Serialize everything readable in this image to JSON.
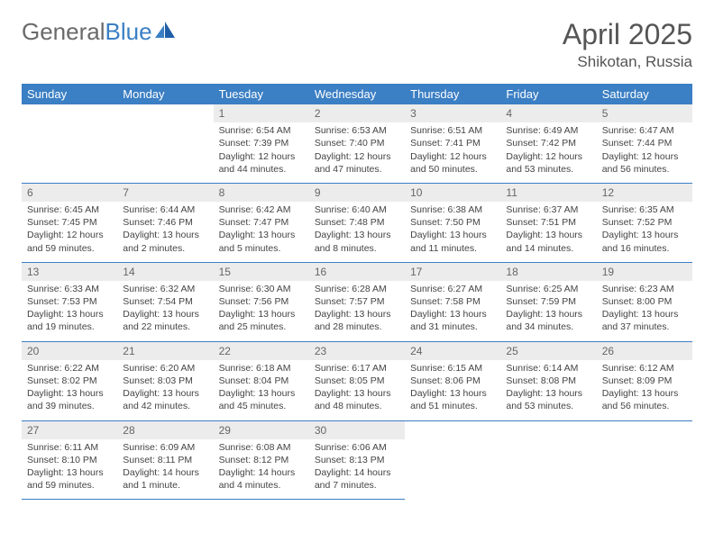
{
  "logo": {
    "text1": "General",
    "text2": "Blue"
  },
  "title": "April 2025",
  "location": "Shikotan, Russia",
  "colors": {
    "header_bg": "#3b7fc4",
    "header_text": "#ffffff",
    "daynum_bg": "#ececec",
    "border": "#3b7fc4",
    "body_text": "#444444",
    "title_text": "#555555"
  },
  "weekdays": [
    "Sunday",
    "Monday",
    "Tuesday",
    "Wednesday",
    "Thursday",
    "Friday",
    "Saturday"
  ],
  "weeks": [
    [
      null,
      null,
      {
        "n": "1",
        "sr": "Sunrise: 6:54 AM",
        "ss": "Sunset: 7:39 PM",
        "dl": "Daylight: 12 hours and 44 minutes."
      },
      {
        "n": "2",
        "sr": "Sunrise: 6:53 AM",
        "ss": "Sunset: 7:40 PM",
        "dl": "Daylight: 12 hours and 47 minutes."
      },
      {
        "n": "3",
        "sr": "Sunrise: 6:51 AM",
        "ss": "Sunset: 7:41 PM",
        "dl": "Daylight: 12 hours and 50 minutes."
      },
      {
        "n": "4",
        "sr": "Sunrise: 6:49 AM",
        "ss": "Sunset: 7:42 PM",
        "dl": "Daylight: 12 hours and 53 minutes."
      },
      {
        "n": "5",
        "sr": "Sunrise: 6:47 AM",
        "ss": "Sunset: 7:44 PM",
        "dl": "Daylight: 12 hours and 56 minutes."
      }
    ],
    [
      {
        "n": "6",
        "sr": "Sunrise: 6:45 AM",
        "ss": "Sunset: 7:45 PM",
        "dl": "Daylight: 12 hours and 59 minutes."
      },
      {
        "n": "7",
        "sr": "Sunrise: 6:44 AM",
        "ss": "Sunset: 7:46 PM",
        "dl": "Daylight: 13 hours and 2 minutes."
      },
      {
        "n": "8",
        "sr": "Sunrise: 6:42 AM",
        "ss": "Sunset: 7:47 PM",
        "dl": "Daylight: 13 hours and 5 minutes."
      },
      {
        "n": "9",
        "sr": "Sunrise: 6:40 AM",
        "ss": "Sunset: 7:48 PM",
        "dl": "Daylight: 13 hours and 8 minutes."
      },
      {
        "n": "10",
        "sr": "Sunrise: 6:38 AM",
        "ss": "Sunset: 7:50 PM",
        "dl": "Daylight: 13 hours and 11 minutes."
      },
      {
        "n": "11",
        "sr": "Sunrise: 6:37 AM",
        "ss": "Sunset: 7:51 PM",
        "dl": "Daylight: 13 hours and 14 minutes."
      },
      {
        "n": "12",
        "sr": "Sunrise: 6:35 AM",
        "ss": "Sunset: 7:52 PM",
        "dl": "Daylight: 13 hours and 16 minutes."
      }
    ],
    [
      {
        "n": "13",
        "sr": "Sunrise: 6:33 AM",
        "ss": "Sunset: 7:53 PM",
        "dl": "Daylight: 13 hours and 19 minutes."
      },
      {
        "n": "14",
        "sr": "Sunrise: 6:32 AM",
        "ss": "Sunset: 7:54 PM",
        "dl": "Daylight: 13 hours and 22 minutes."
      },
      {
        "n": "15",
        "sr": "Sunrise: 6:30 AM",
        "ss": "Sunset: 7:56 PM",
        "dl": "Daylight: 13 hours and 25 minutes."
      },
      {
        "n": "16",
        "sr": "Sunrise: 6:28 AM",
        "ss": "Sunset: 7:57 PM",
        "dl": "Daylight: 13 hours and 28 minutes."
      },
      {
        "n": "17",
        "sr": "Sunrise: 6:27 AM",
        "ss": "Sunset: 7:58 PM",
        "dl": "Daylight: 13 hours and 31 minutes."
      },
      {
        "n": "18",
        "sr": "Sunrise: 6:25 AM",
        "ss": "Sunset: 7:59 PM",
        "dl": "Daylight: 13 hours and 34 minutes."
      },
      {
        "n": "19",
        "sr": "Sunrise: 6:23 AM",
        "ss": "Sunset: 8:00 PM",
        "dl": "Daylight: 13 hours and 37 minutes."
      }
    ],
    [
      {
        "n": "20",
        "sr": "Sunrise: 6:22 AM",
        "ss": "Sunset: 8:02 PM",
        "dl": "Daylight: 13 hours and 39 minutes."
      },
      {
        "n": "21",
        "sr": "Sunrise: 6:20 AM",
        "ss": "Sunset: 8:03 PM",
        "dl": "Daylight: 13 hours and 42 minutes."
      },
      {
        "n": "22",
        "sr": "Sunrise: 6:18 AM",
        "ss": "Sunset: 8:04 PM",
        "dl": "Daylight: 13 hours and 45 minutes."
      },
      {
        "n": "23",
        "sr": "Sunrise: 6:17 AM",
        "ss": "Sunset: 8:05 PM",
        "dl": "Daylight: 13 hours and 48 minutes."
      },
      {
        "n": "24",
        "sr": "Sunrise: 6:15 AM",
        "ss": "Sunset: 8:06 PM",
        "dl": "Daylight: 13 hours and 51 minutes."
      },
      {
        "n": "25",
        "sr": "Sunrise: 6:14 AM",
        "ss": "Sunset: 8:08 PM",
        "dl": "Daylight: 13 hours and 53 minutes."
      },
      {
        "n": "26",
        "sr": "Sunrise: 6:12 AM",
        "ss": "Sunset: 8:09 PM",
        "dl": "Daylight: 13 hours and 56 minutes."
      }
    ],
    [
      {
        "n": "27",
        "sr": "Sunrise: 6:11 AM",
        "ss": "Sunset: 8:10 PM",
        "dl": "Daylight: 13 hours and 59 minutes."
      },
      {
        "n": "28",
        "sr": "Sunrise: 6:09 AM",
        "ss": "Sunset: 8:11 PM",
        "dl": "Daylight: 14 hours and 1 minute."
      },
      {
        "n": "29",
        "sr": "Sunrise: 6:08 AM",
        "ss": "Sunset: 8:12 PM",
        "dl": "Daylight: 14 hours and 4 minutes."
      },
      {
        "n": "30",
        "sr": "Sunrise: 6:06 AM",
        "ss": "Sunset: 8:13 PM",
        "dl": "Daylight: 14 hours and 7 minutes."
      },
      null,
      null,
      null
    ]
  ]
}
